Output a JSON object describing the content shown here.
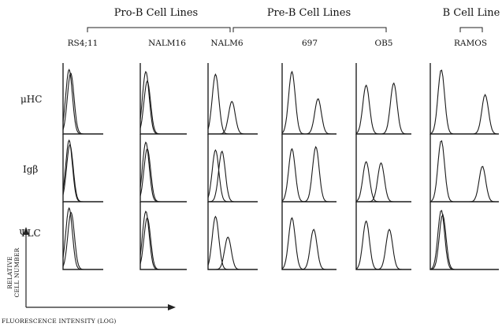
{
  "groups": [
    {
      "label": "Pro-B Cell Lines"
    },
    {
      "label": "Pre-B Cell Lines"
    },
    {
      "label": "B Cell Line"
    }
  ],
  "cell_lines": [
    "RS4;11",
    "NALM16",
    "NALM6",
    "697",
    "OB5",
    "RAMOS"
  ],
  "rows": [
    "μHC",
    "Igβ",
    "ΨLC"
  ],
  "axes": {
    "y_label_line1": "RELATIVE",
    "y_label_line2": "CELL NUMBER",
    "x_label": "FLUORESCENCE INTENSITY (LOG)"
  },
  "histograms": [
    [
      {
        "control": [
          0.15,
          0.95
        ],
        "stain": [
          0.19,
          0.9
        ]
      },
      {
        "control": [
          0.12,
          0.92
        ],
        "stain": [
          0.15,
          0.78
        ]
      },
      {
        "control": [
          0.15,
          0.88
        ],
        "stain": [
          0.48,
          0.48
        ]
      },
      {
        "control": [
          0.18,
          0.92
        ],
        "stain": [
          0.66,
          0.52
        ]
      },
      {
        "control": [
          0.18,
          0.72
        ],
        "stain": [
          0.68,
          0.75
        ]
      },
      {
        "control": [
          0.16,
          0.95
        ],
        "stain": [
          0.8,
          0.58
        ]
      }
    ],
    [
      {
        "control": [
          0.15,
          0.95
        ],
        "stain": [
          0.17,
          0.88
        ]
      },
      {
        "control": [
          0.12,
          0.92
        ],
        "stain": [
          0.15,
          0.82
        ]
      },
      {
        "control": [
          0.15,
          0.8
        ],
        "stain": [
          0.28,
          0.78
        ]
      },
      {
        "control": [
          0.18,
          0.82
        ],
        "stain": [
          0.62,
          0.85
        ]
      },
      {
        "control": [
          0.18,
          0.62
        ],
        "stain": [
          0.45,
          0.6
        ]
      },
      {
        "control": [
          0.16,
          0.95
        ],
        "stain": [
          0.76,
          0.55
        ]
      }
    ],
    [
      {
        "control": [
          0.15,
          0.95
        ],
        "stain": [
          0.2,
          0.88
        ]
      },
      {
        "control": [
          0.12,
          0.9
        ],
        "stain": [
          0.15,
          0.8
        ]
      },
      {
        "control": [
          0.15,
          0.82
        ],
        "stain": [
          0.4,
          0.5
        ]
      },
      {
        "control": [
          0.18,
          0.8
        ],
        "stain": [
          0.58,
          0.62
        ]
      },
      {
        "control": [
          0.18,
          0.75
        ],
        "stain": [
          0.6,
          0.62
        ]
      },
      {
        "control": [
          0.16,
          0.92
        ],
        "stain": [
          0.18,
          0.85
        ]
      }
    ]
  ]
}
